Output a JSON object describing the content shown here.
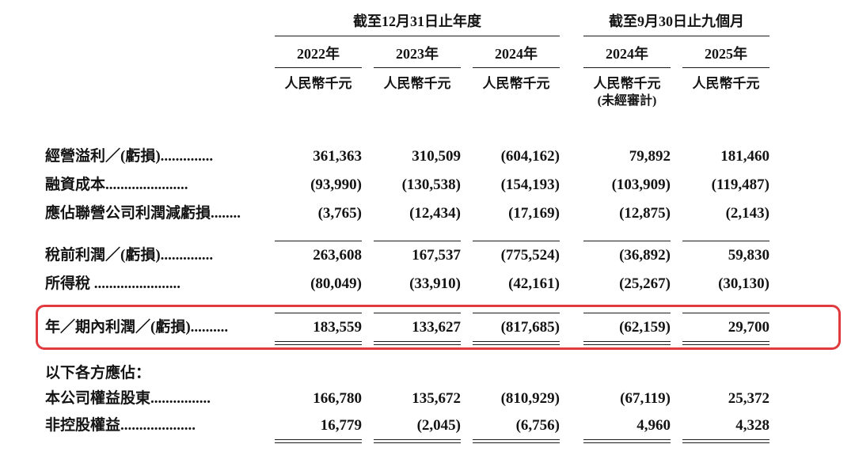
{
  "header": {
    "groups": [
      {
        "label": "截至12月31日止年度"
      },
      {
        "label": "截至9月30日止九個月"
      }
    ],
    "columns": [
      {
        "year": "2022年",
        "unit": "人民幣千元",
        "note": ""
      },
      {
        "year": "2023年",
        "unit": "人民幣千元",
        "note": ""
      },
      {
        "year": "2024年",
        "unit": "人民幣千元",
        "note": ""
      },
      {
        "year": "2024年",
        "unit": "人民幣千元",
        "note": "(未經審計)"
      },
      {
        "year": "2025年",
        "unit": "人民幣千元",
        "note": ""
      }
    ]
  },
  "rows": [
    {
      "label": "經營溢利／(虧損)..............",
      "values": [
        "361,363",
        "310,509",
        "(604,162)",
        "79,892",
        "181,460"
      ]
    },
    {
      "label": "融資成本......................",
      "values": [
        "(93,990)",
        "(130,538)",
        "(154,193)",
        "(103,909)",
        "(119,487)"
      ]
    },
    {
      "label": "應佔聯營公司利潤減虧損........",
      "values": [
        "(3,765)",
        "(12,434)",
        "(17,169)",
        "(12,875)",
        "(2,143)"
      ]
    },
    {
      "label": "稅前利潤／(虧損)..............",
      "values": [
        "263,608",
        "167,537",
        "(775,524)",
        "(36,892)",
        "59,830"
      ]
    },
    {
      "label": "所得稅 .......................",
      "values": [
        "(80,049)",
        "(33,910)",
        "(42,161)",
        "(25,267)",
        "(30,130)"
      ]
    },
    {
      "label": "年／期內利潤／(虧損)..........",
      "values": [
        "183,559",
        "133,627",
        "(817,685)",
        "(62,159)",
        "29,700"
      ]
    },
    {
      "label": "以下各方應佔：",
      "values": []
    },
    {
      "label": "本公司權益股東................",
      "values": [
        "166,780",
        "135,672",
        "(810,929)",
        "(67,119)",
        "25,372"
      ]
    },
    {
      "label": "非控股權益....................",
      "values": [
        "16,779",
        "(2,045)",
        "(6,756)",
        "4,960",
        "4,328"
      ]
    }
  ],
  "highlight_color": "#e03a3e"
}
